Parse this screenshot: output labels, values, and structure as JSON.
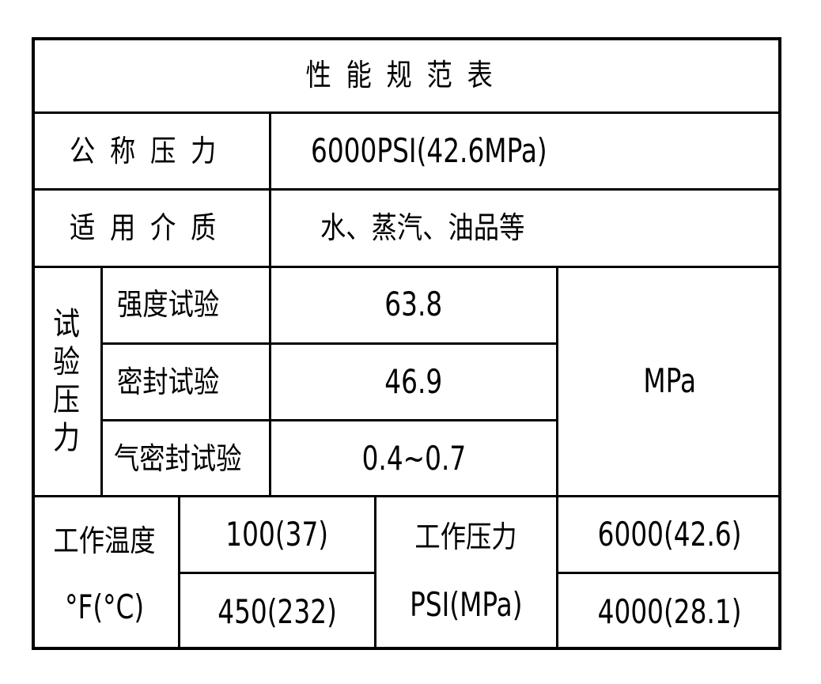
{
  "title": "性能规范表",
  "nominal_pressure": {
    "label": "公称压力",
    "value": "6000PSI(42.6MPa)"
  },
  "medium": {
    "label": "适用介质",
    "value": "水、蒸汽、油品等"
  },
  "test_pressure": {
    "label": "试验压力",
    "label_chars": [
      "试",
      "验",
      "压",
      "力"
    ],
    "unit": "MPa",
    "rows": [
      {
        "name": "强度试验",
        "value": "63.8"
      },
      {
        "name": "密封试验",
        "value": "46.9"
      },
      {
        "name": "气密封试验",
        "value": "0.4~0.7"
      }
    ]
  },
  "working": {
    "temp_label": "工作温度",
    "temp_unit": "°F(°C)",
    "temp_values": [
      "100(37)",
      "450(232)"
    ],
    "pressure_label": "工作压力",
    "pressure_unit": "PSI(MPa)",
    "pressure_values": [
      "6000(42.6)",
      "4000(28.1)"
    ]
  }
}
